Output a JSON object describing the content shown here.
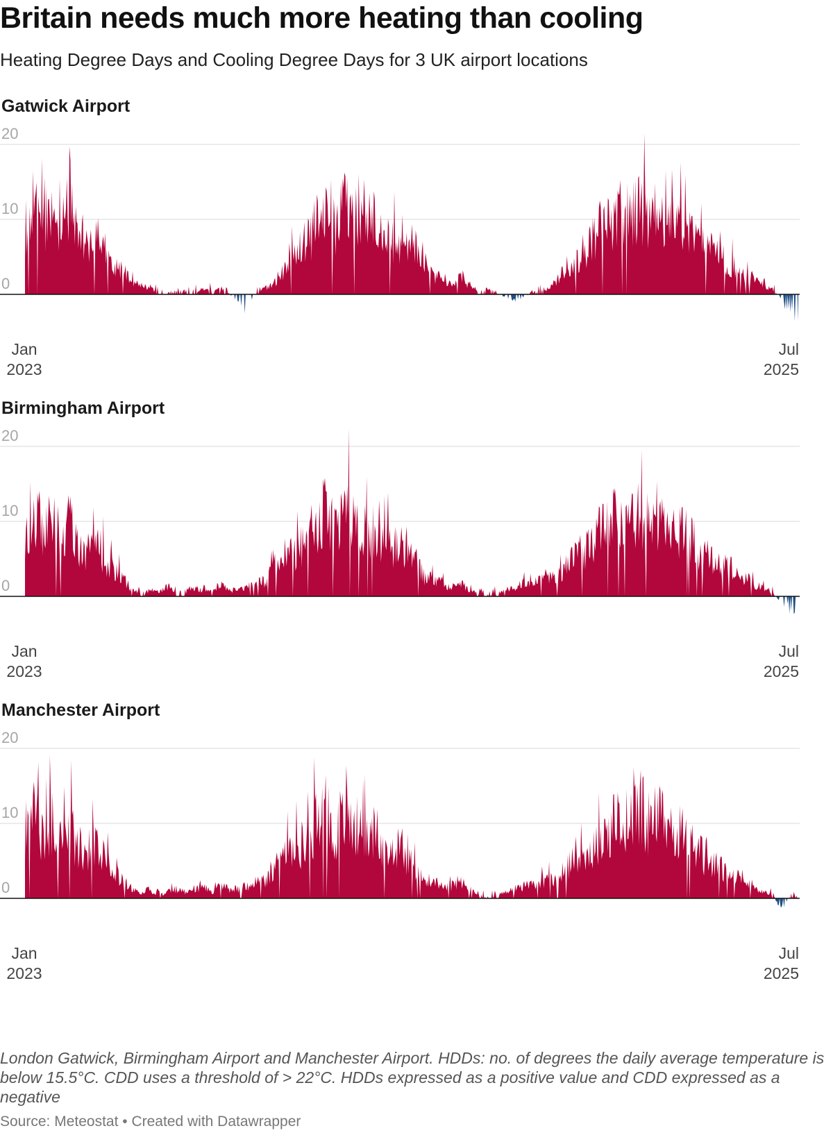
{
  "title": "Britain needs much more heating than cooling",
  "subtitle": "Heating Degree Days and Cooling Degree Days for 3 UK airport locations",
  "colors": {
    "hdd": "#b2073c",
    "cdd": "#1f4e86"
  },
  "chart_data": [
    {
      "type": "area",
      "title": "Gatwick Airport",
      "x_range": [
        "2023-01-01",
        "2025-07-01"
      ],
      "ylim": [
        -4,
        20
      ],
      "yticks": [
        "20",
        "10",
        "0"
      ],
      "xticks": [
        {
          "label": "Jan",
          "year": "2023"
        },
        {
          "label": "Jul",
          "year": "2025"
        }
      ],
      "series": [
        {
          "values_by_month": [
            [
              10.2,
              14.8,
              12.0
            ],
            [
              13.5,
              11.2,
              14.0
            ],
            [
              9.0,
              8.0,
              9.5
            ],
            [
              7.0,
              4.5,
              3.5
            ],
            [
              2.5,
              1.5,
              1.0
            ],
            [
              0.3,
              0.2,
              0.3
            ],
            [
              0.3,
              0.5,
              0.8
            ],
            [
              0.5,
              1.0,
              0.0
            ],
            [
              -1.0,
              -2.0,
              0.5
            ],
            [
              1.0,
              2.0,
              3.5
            ],
            [
              5.5,
              7.5,
              9.0
            ],
            [
              12.0,
              14.5,
              11.0
            ],
            [
              15.0,
              13.0,
              14.5
            ],
            [
              12.0,
              10.0,
              9.0
            ],
            [
              7.5,
              6.0,
              8.0
            ],
            [
              5.0,
              3.0,
              2.5
            ],
            [
              2.0,
              2.5,
              1.5
            ],
            [
              0.5,
              0.3,
              0.2
            ],
            [
              -0.4,
              -0.8,
              -0.3
            ],
            [
              0.2,
              0.5,
              1.0
            ],
            [
              2.5,
              4.5,
              6.0
            ],
            [
              7.5,
              9.0,
              11.5
            ],
            [
              12.0,
              13.5,
              12.5
            ],
            [
              14.0,
              12.0,
              13.5
            ],
            [
              11.5,
              12.5,
              10.0
            ],
            [
              10.0,
              8.0,
              7.0
            ],
            [
              6.0,
              5.0,
              4.0
            ],
            [
              3.0,
              2.0,
              1.5
            ],
            [
              0.8,
              -0.5,
              -2.5
            ]
          ]
        }
      ]
    },
    {
      "type": "area",
      "title": "Birmingham Airport",
      "x_range": [
        "2023-01-01",
        "2025-07-01"
      ],
      "ylim": [
        -4,
        20
      ],
      "yticks": [
        "20",
        "10",
        "0"
      ],
      "xticks": [
        {
          "label": "Jan",
          "year": "2023"
        },
        {
          "label": "Jul",
          "year": "2025"
        }
      ],
      "series": [
        {
          "values_by_month": [
            [
              11.0,
              14.0,
              10.5
            ],
            [
              13.0,
              9.0,
              12.5
            ],
            [
              8.0,
              7.0,
              9.0
            ],
            [
              6.0,
              4.0,
              3.0
            ],
            [
              1.0,
              0.5,
              1.0
            ],
            [
              0.8,
              1.5,
              0.5
            ],
            [
              0.5,
              1.5,
              1.0
            ],
            [
              1.0,
              2.0,
              1.0
            ],
            [
              1.0,
              1.5,
              2.0
            ],
            [
              2.5,
              4.5,
              7.0
            ],
            [
              6.5,
              8.0,
              10.0
            ],
            [
              13.0,
              13.5,
              10.0
            ],
            [
              14.0,
              12.5,
              10.5
            ],
            [
              11.0,
              9.5,
              8.0
            ],
            [
              8.5,
              7.0,
              5.0
            ],
            [
              3.0,
              2.5,
              2.0
            ],
            [
              1.5,
              2.0,
              1.0
            ],
            [
              0.5,
              0.3,
              0.5
            ],
            [
              1.0,
              1.5,
              2.0
            ],
            [
              2.0,
              2.5,
              3.0
            ],
            [
              3.5,
              5.0,
              6.5
            ],
            [
              7.5,
              9.0,
              11.0
            ],
            [
              12.0,
              13.0,
              12.0
            ],
            [
              14.5,
              12.0,
              13.0
            ],
            [
              11.5,
              11.0,
              10.5
            ],
            [
              9.0,
              7.0,
              6.5
            ],
            [
              5.5,
              5.0,
              4.0
            ],
            [
              3.0,
              2.0,
              1.5
            ],
            [
              0.5,
              -0.8,
              -1.8
            ]
          ]
        }
      ]
    },
    {
      "type": "area",
      "title": "Manchester Airport",
      "x_range": [
        "2023-01-01",
        "2025-07-01"
      ],
      "ylim": [
        -4,
        20
      ],
      "yticks": [
        "20",
        "10",
        "0"
      ],
      "xticks": [
        {
          "label": "Jan",
          "year": "2023"
        },
        {
          "label": "Jul",
          "year": "2025"
        }
      ],
      "series": [
        {
          "values_by_month": [
            [
              11.0,
              13.5,
              10.0
            ],
            [
              12.5,
              9.0,
              12.0
            ],
            [
              7.5,
              7.0,
              8.5
            ],
            [
              6.0,
              4.0,
              3.0
            ],
            [
              1.5,
              1.0,
              1.5
            ],
            [
              0.5,
              1.0,
              1.5
            ],
            [
              1.0,
              1.5,
              2.0
            ],
            [
              1.0,
              2.0,
              1.5
            ],
            [
              1.5,
              2.0,
              2.5
            ],
            [
              3.0,
              5.0,
              7.0
            ],
            [
              7.0,
              8.5,
              10.0
            ],
            [
              13.0,
              14.0,
              10.5
            ],
            [
              15.0,
              12.0,
              10.5
            ],
            [
              11.0,
              9.5,
              8.0
            ],
            [
              8.0,
              6.5,
              5.0
            ],
            [
              3.0,
              2.5,
              2.0
            ],
            [
              2.0,
              2.5,
              1.5
            ],
            [
              0.5,
              0.3,
              0.5
            ],
            [
              1.0,
              1.5,
              2.0
            ],
            [
              2.0,
              2.5,
              3.0
            ],
            [
              3.5,
              5.0,
              6.5
            ],
            [
              7.0,
              9.0,
              11.0
            ],
            [
              12.0,
              13.0,
              12.0
            ],
            [
              15.0,
              12.5,
              13.0
            ],
            [
              11.5,
              11.0,
              10.0
            ],
            [
              8.5,
              7.0,
              6.0
            ],
            [
              5.0,
              4.5,
              3.5
            ],
            [
              2.5,
              1.5,
              1.0
            ],
            [
              0.5,
              -1.5,
              0.3
            ]
          ]
        }
      ]
    }
  ],
  "notes": "London Gatwick, Birmingham Airport and Manchester Airport. HDDs: no. of degrees the daily average temperature is below 15.5°C. CDD uses a threshold of > 22°C. HDDs expressed as a positive value and CDD expressed as a negative",
  "source": "Source: Meteostat • Created with Datawrapper"
}
